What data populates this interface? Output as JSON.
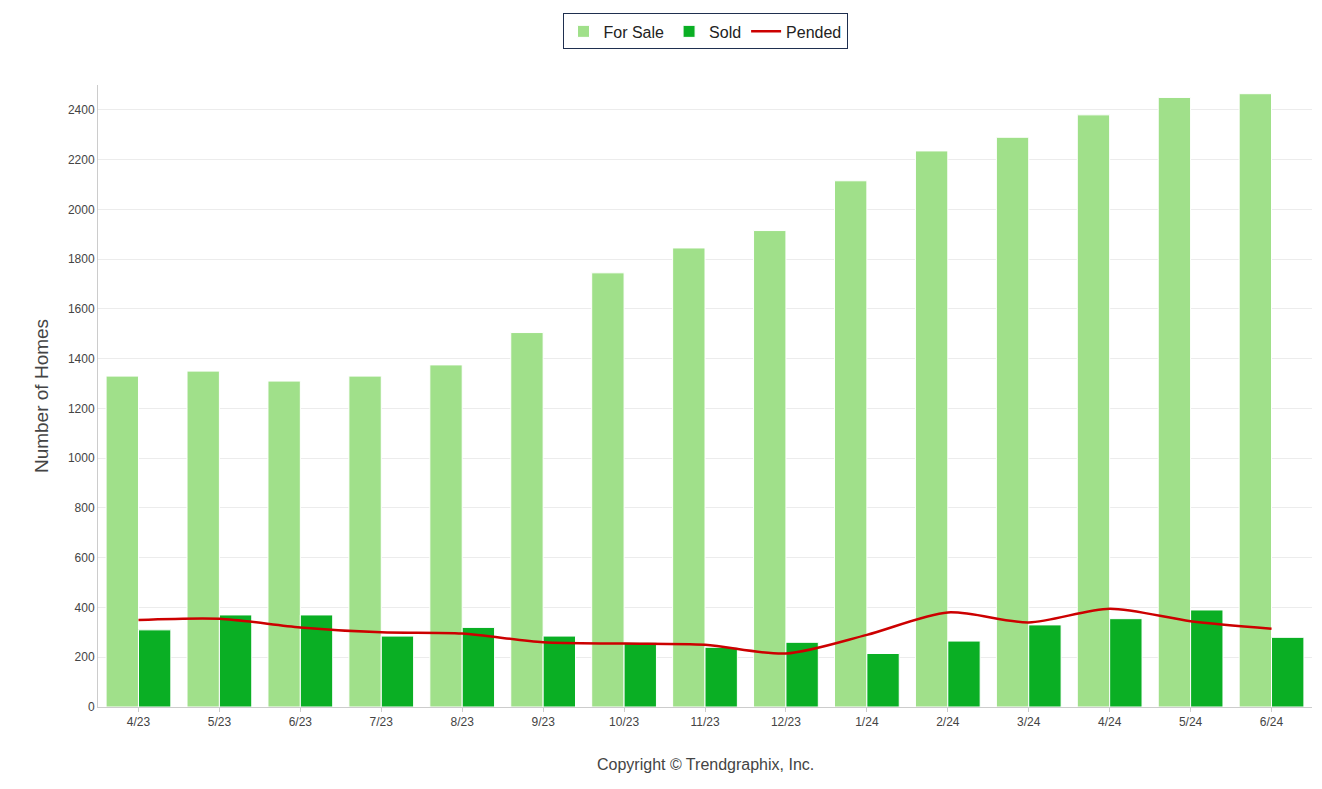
{
  "chart_data": {
    "type": "bar",
    "y_label": "Number of Homes",
    "annotations": [
      "Copyright © Trendgraphix, Inc."
    ],
    "categories": [
      "4/23",
      "5/23",
      "6/23",
      "7/23",
      "8/23",
      "9/23",
      "10/23",
      "11/23",
      "12/23",
      "1/24",
      "2/24",
      "3/24",
      "4/24",
      "5/24",
      "6/24"
    ],
    "series": [
      {
        "name": "For Sale",
        "type": "bar",
        "color": "#a0e08a",
        "values": [
          1330,
          1350,
          1310,
          1330,
          1375,
          1505,
          1745,
          1845,
          1915,
          2115,
          2235,
          2290,
          2380,
          2450,
          2465
        ]
      },
      {
        "name": "Sold",
        "type": "bar",
        "color": "#0aaf24",
        "values": [
          310,
          370,
          370,
          285,
          320,
          285,
          260,
          240,
          260,
          215,
          265,
          330,
          355,
          390,
          280
        ]
      },
      {
        "name": "Pended",
        "type": "line",
        "color": "#cc0000",
        "line_style": "solid",
        "values": [
          350,
          355,
          320,
          300,
          295,
          260,
          255,
          250,
          215,
          290,
          380,
          340,
          395,
          345,
          315
        ]
      }
    ],
    "ylim": [
      0,
      2500
    ],
    "yticks": [
      0,
      200,
      400,
      600,
      800,
      1000,
      1200,
      1400,
      1600,
      1800,
      2000,
      2200,
      2400
    ],
    "grid": true,
    "legend": "top"
  }
}
